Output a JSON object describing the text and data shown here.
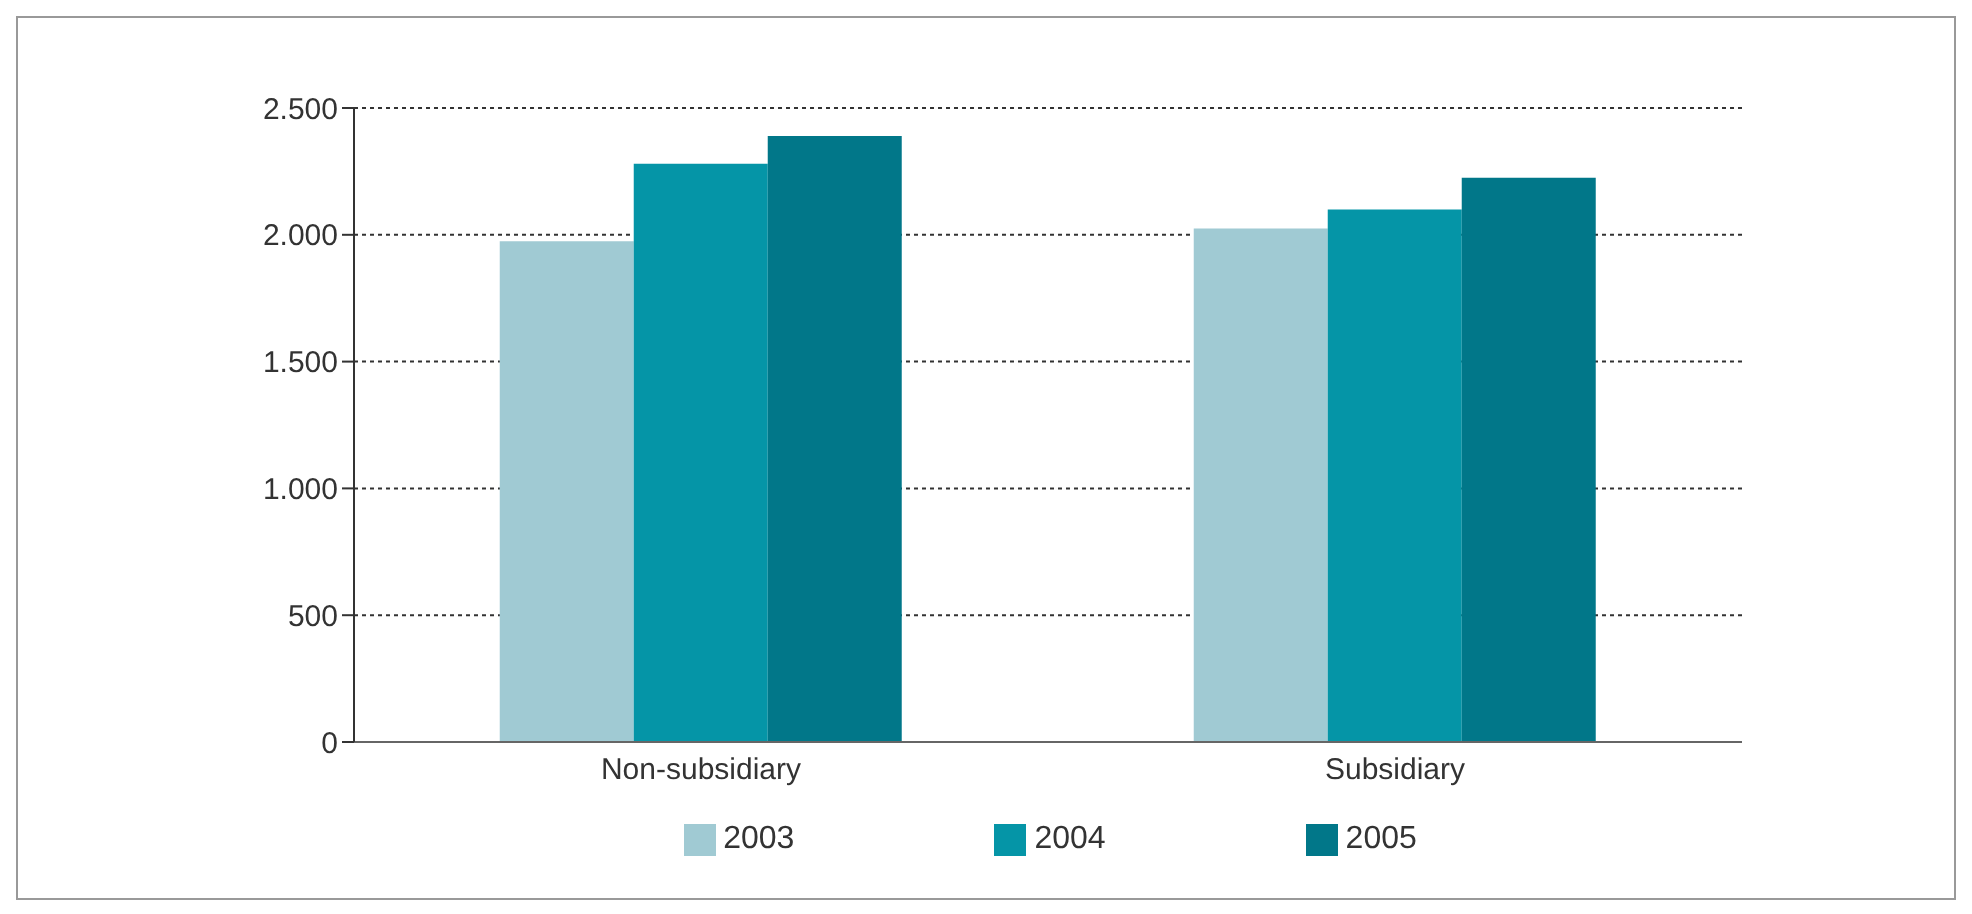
{
  "chart_data": {
    "type": "bar",
    "categories": [
      "Non-subsidiary",
      "Subsidiary"
    ],
    "series": [
      {
        "name": "2003",
        "color": "#a0cad3",
        "values": [
          1975,
          2025
        ]
      },
      {
        "name": "2004",
        "color": "#0595a7",
        "values": [
          2280,
          2100
        ]
      },
      {
        "name": "2005",
        "color": "#017789",
        "values": [
          2390,
          2225
        ]
      }
    ],
    "ylim": [
      0,
      2500
    ],
    "yticks": [
      0,
      500,
      {
        "value": 1000,
        "label": "1.000"
      },
      {
        "value": 1500,
        "label": "1.500"
      },
      {
        "value": 2000,
        "label": "2.000"
      },
      {
        "value": 2500,
        "label": "2.500"
      }
    ],
    "grid": "y",
    "legend": "bottom"
  }
}
